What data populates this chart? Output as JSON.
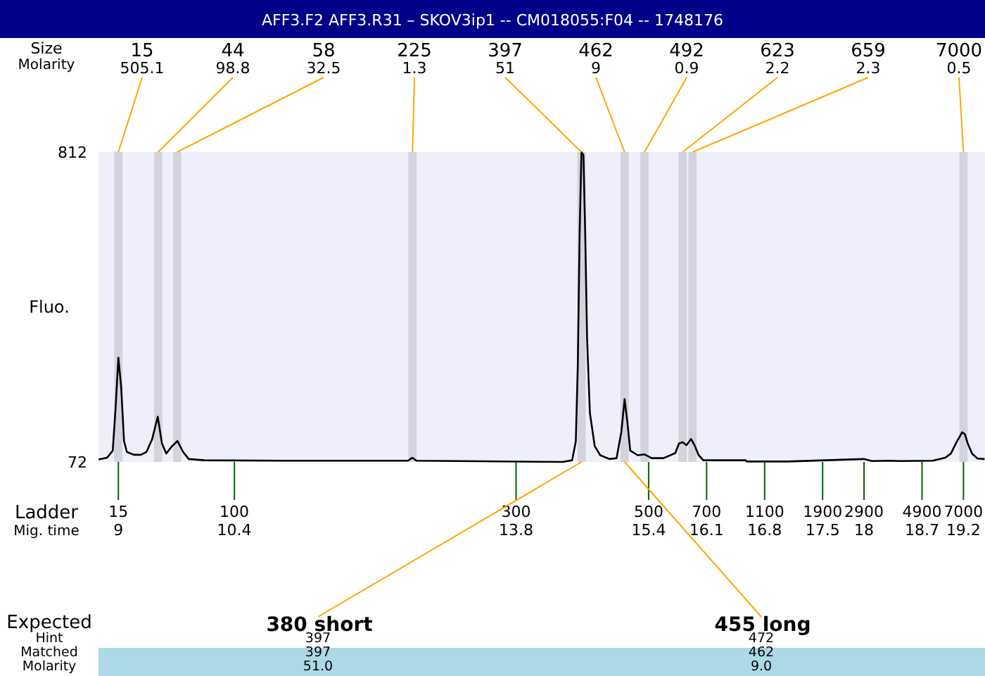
{
  "chart_data": {
    "type": "line",
    "title": "AFF3.F2  AFF3.R31 – SKOV3ip1 -- CM018055:F04 -- 1748176",
    "xlabel": "Mig. time",
    "ylabel": "Fluo.",
    "xlim": [
      8.76,
      19.46
    ],
    "ylim": [
      72,
      812
    ],
    "yticks": [
      72,
      812
    ],
    "xticks": [
      9,
      10.4,
      13.8,
      15.4,
      16.1,
      16.8,
      17.5,
      18,
      18.7,
      19.2
    ],
    "grid": false,
    "series": [
      {
        "color": "#000000",
        "x": [
          8.762,
          8.864,
          8.932,
          8.966,
          9.0,
          9.034,
          9.068,
          9.102,
          9.187,
          9.272,
          9.339,
          9.407,
          9.475,
          9.526,
          9.577,
          9.645,
          9.713,
          9.781,
          9.849,
          10.035,
          10.969,
          12.496,
          12.547,
          12.598,
          14.363,
          14.477,
          14.521,
          14.545,
          14.567,
          14.589,
          14.613,
          14.635,
          14.657,
          14.691,
          14.749,
          14.816,
          14.928,
          15.013,
          15.071,
          15.11,
          15.144,
          15.178,
          15.268,
          15.352,
          15.437,
          15.58,
          15.721,
          15.767,
          15.811,
          15.857,
          15.913,
          15.959,
          16.004,
          16.06,
          16.57,
          16.587,
          17.079,
          17.995,
          18.097,
          18.301,
          18.436,
          18.827,
          18.98,
          19.048,
          19.116,
          19.184,
          19.218,
          19.252,
          19.303,
          19.37,
          19.455
        ],
        "values": [
          78,
          82,
          99,
          200,
          321,
          250,
          122,
          96,
          89,
          89,
          96,
          126,
          180,
          116,
          92,
          109,
          122,
          96,
          79,
          76,
          75,
          75,
          82,
          75,
          72,
          76,
          121,
          301,
          615,
          812,
          805,
          615,
          368,
          189,
          110,
          88,
          79,
          81,
          144,
          222,
          166,
          99,
          88,
          90,
          81,
          81,
          93,
          116,
          119,
          112,
          127,
          110,
          88,
          76,
          76,
          73,
          73,
          79,
          74,
          75,
          74,
          75,
          82,
          92,
          119,
          143,
          138,
          116,
          92,
          80,
          79
        ]
      }
    ],
    "bands": [
      {
        "axis": "x",
        "from": 8.95,
        "to": 9.05,
        "label": "15",
        "color": "#d3d3de"
      },
      {
        "axis": "x",
        "from": 9.43,
        "to": 9.53,
        "label": "44",
        "color": "#d3d3de"
      },
      {
        "axis": "x",
        "from": 9.66,
        "to": 9.76,
        "label": "58",
        "color": "#d3d3de"
      },
      {
        "axis": "x",
        "from": 12.5,
        "to": 12.6,
        "label": "225",
        "color": "#d3d3de"
      },
      {
        "axis": "x",
        "from": 14.54,
        "to": 14.64,
        "label": "397",
        "color": "#d3d3de"
      },
      {
        "axis": "x",
        "from": 15.06,
        "to": 15.16,
        "label": "462",
        "color": "#d3d3de"
      },
      {
        "axis": "x",
        "from": 15.3,
        "to": 15.4,
        "label": "492",
        "color": "#d3d3de"
      },
      {
        "axis": "x",
        "from": 15.76,
        "to": 15.86,
        "label": "623",
        "color": "#d3d3de"
      },
      {
        "axis": "x",
        "from": 15.88,
        "to": 15.98,
        "label": "659",
        "color": "#d3d3de"
      },
      {
        "axis": "x",
        "from": 19.15,
        "to": 19.25,
        "label": "7000",
        "color": "#d3d3de"
      }
    ],
    "annotations": [
      "Size",
      "Molarity",
      "Ladder",
      {
        "text": "505.1",
        "x": 9.0,
        "y": 812
      },
      {
        "text": "98.8",
        "x": 9.48,
        "y": 812
      },
      {
        "text": "32.5",
        "x": 9.71,
        "y": 812
      },
      {
        "text": "1.3",
        "x": 12.55,
        "y": 812
      },
      {
        "text": "51",
        "x": 14.59,
        "y": 812
      },
      {
        "text": "9",
        "x": 15.11,
        "y": 812
      },
      {
        "text": "0.9",
        "x": 15.35,
        "y": 812
      },
      {
        "text": "2.2",
        "x": 15.81,
        "y": 812
      },
      {
        "text": "2.3",
        "x": 15.93,
        "y": 812
      },
      {
        "text": "0.5",
        "x": 19.2,
        "y": 812
      },
      {
        "text": "15",
        "x": 9,
        "y": 72
      },
      {
        "text": "100",
        "x": 10.4,
        "y": 72
      },
      {
        "text": "300",
        "x": 13.8,
        "y": 72
      },
      {
        "text": "500",
        "x": 15.4,
        "y": 72
      },
      {
        "text": "700",
        "x": 16.1,
        "y": 72
      },
      {
        "text": "1100",
        "x": 16.8,
        "y": 72
      },
      {
        "text": "1900",
        "x": 17.5,
        "y": 72
      },
      {
        "text": "2900",
        "x": 18,
        "y": 72
      },
      {
        "text": "4900",
        "x": 18.7,
        "y": 72
      },
      {
        "text": "7000",
        "x": 19.2,
        "y": 72
      },
      "Expected",
      "Hint",
      "Matched",
      "Molarity",
      {
        "text": "380 short",
        "x": 14.59,
        "y": 72
      },
      {
        "text": "455 long",
        "x": 15.11,
        "y": 72
      },
      "397",
      "472",
      "397",
      "462",
      "51.0",
      "9.0"
    ]
  }
}
